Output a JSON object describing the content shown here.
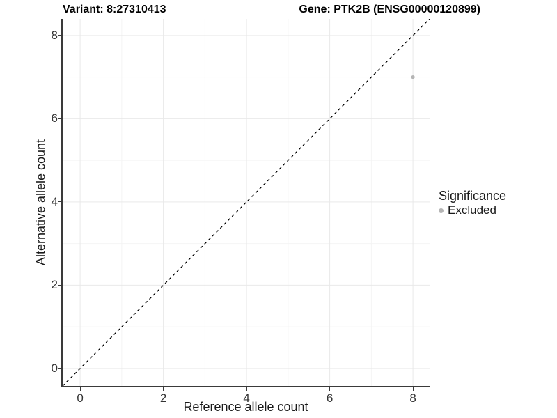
{
  "figure": {
    "title_variant": "Variant: 8:27310413",
    "title_gene": "Gene: PTK2B (ENSG00000120899)"
  },
  "chart_data": {
    "type": "scatter",
    "title": "Variant: 8:27310413    Gene: PTK2B (ENSG00000120899)",
    "xlabel": "Reference allele count",
    "ylabel": "Alternative allele count",
    "xlim": [
      -0.42,
      8.4
    ],
    "ylim": [
      -0.42,
      8.4
    ],
    "xticks": [
      0,
      2,
      4,
      6,
      8
    ],
    "yticks": [
      0,
      2,
      4,
      6,
      8
    ],
    "xticks_minor": [
      1,
      3,
      5,
      7
    ],
    "yticks_minor": [
      1,
      3,
      5,
      7
    ],
    "grid": "major+minor",
    "points": [
      {
        "x": 8,
        "y": 7,
        "series": "Excluded",
        "color": "#b5b5b5",
        "radius": 2.6
      }
    ],
    "reference_line": {
      "kind": "identity",
      "slope": 1,
      "intercept": 0,
      "style": "dashed",
      "color": "#000000"
    },
    "legend": {
      "title": "Significance",
      "position": "right",
      "entries": [
        {
          "label": "Excluded",
          "color": "#b5b5b5"
        }
      ]
    }
  },
  "colors": {
    "background": "#ffffff",
    "axis_line": "#3a3a3a",
    "tick_label": "#333333",
    "grid_major": "#e9e9e9",
    "grid_minor": "#f4f4f4",
    "point": "#b5b5b5",
    "dashed_line": "#000000"
  }
}
